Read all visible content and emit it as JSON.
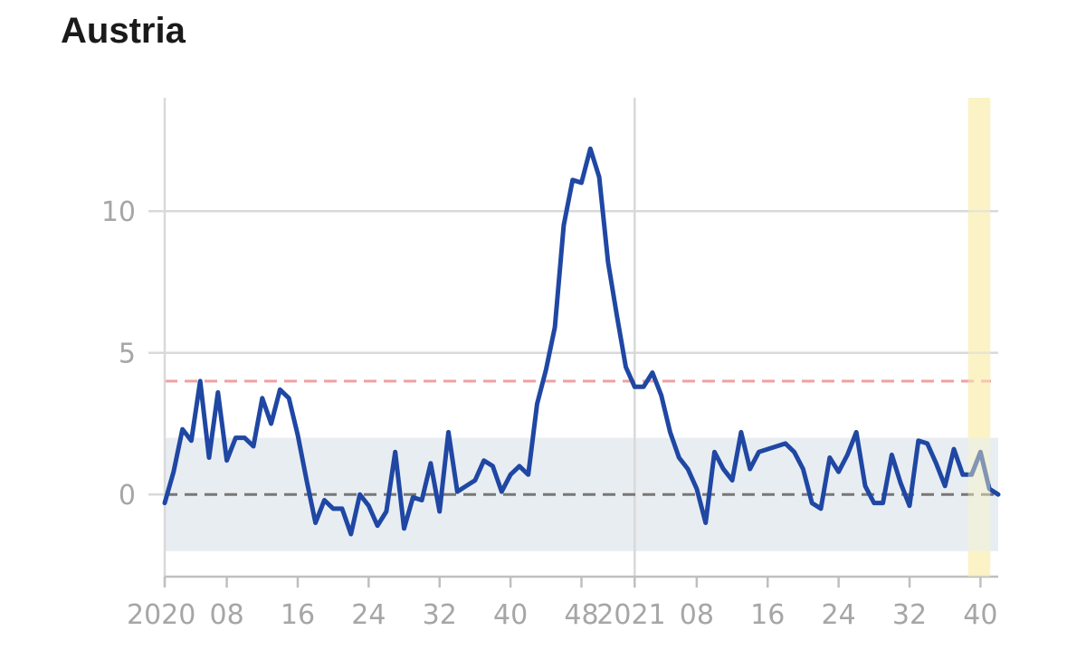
{
  "title": "Austria",
  "chart_data": {
    "type": "line",
    "title": "Austria",
    "xlabel": "",
    "ylabel": "",
    "ylim": [
      -2.9,
      14.0
    ],
    "yticks": [
      0,
      5,
      10
    ],
    "xticks": [
      {
        "week": 1,
        "label": "2020"
      },
      {
        "week": 8,
        "label": "08"
      },
      {
        "week": 16,
        "label": "16"
      },
      {
        "week": 24,
        "label": "24"
      },
      {
        "week": 32,
        "label": "32"
      },
      {
        "week": 40,
        "label": "40"
      },
      {
        "week": 48,
        "label": "48"
      },
      {
        "week": 54,
        "label": "2021"
      },
      {
        "week": 61,
        "label": "08"
      },
      {
        "week": 69,
        "label": "16"
      },
      {
        "week": 77,
        "label": "24"
      },
      {
        "week": 85,
        "label": "32"
      },
      {
        "week": 93,
        "label": "40"
      }
    ],
    "baseline": 0,
    "threshold": 4,
    "band": [
      -2,
      2
    ],
    "highlight_weeks": [
      92,
      94
    ],
    "grid": true,
    "colors": {
      "line": "#1f47a3",
      "threshold": "#f0a0a0",
      "baseline": "#777777",
      "band": "#e8edf2",
      "highlight": "#fbf3c6",
      "grid": "#d9d9d9"
    },
    "series": [
      {
        "values": [
          -0.3,
          0.8,
          2.3,
          1.9,
          4.0,
          1.3,
          3.6,
          1.2,
          2.0,
          2.0,
          1.7,
          3.4,
          2.5,
          3.7,
          3.4,
          2.1,
          0.5,
          -1.0,
          -0.2,
          -0.5,
          -0.5,
          -1.4,
          0.0,
          -0.4,
          -1.1,
          -0.6,
          1.5,
          -1.2,
          -0.1,
          -0.2,
          1.1,
          -0.6,
          2.2,
          0.1,
          0.3,
          0.5,
          1.2,
          1.0,
          0.1,
          0.7,
          1.0,
          0.7,
          3.2,
          4.4,
          5.9,
          9.5,
          11.1,
          11.0,
          12.2,
          11.2,
          8.2,
          6.3,
          4.5,
          3.8,
          3.8,
          4.3,
          3.5,
          2.2,
          1.3,
          0.9,
          0.2,
          -1.0,
          1.5,
          0.9,
          0.5,
          2.2,
          0.9,
          1.5,
          1.6,
          1.7,
          1.8,
          1.5,
          0.9,
          -0.3,
          -0.5,
          1.3,
          0.8,
          1.4,
          2.2,
          0.3,
          -0.3,
          -0.3,
          1.4,
          0.4,
          -0.4,
          1.9,
          1.8,
          1.1,
          0.3,
          1.6,
          0.7,
          0.7,
          1.5,
          0.2,
          0.0
        ]
      }
    ]
  }
}
